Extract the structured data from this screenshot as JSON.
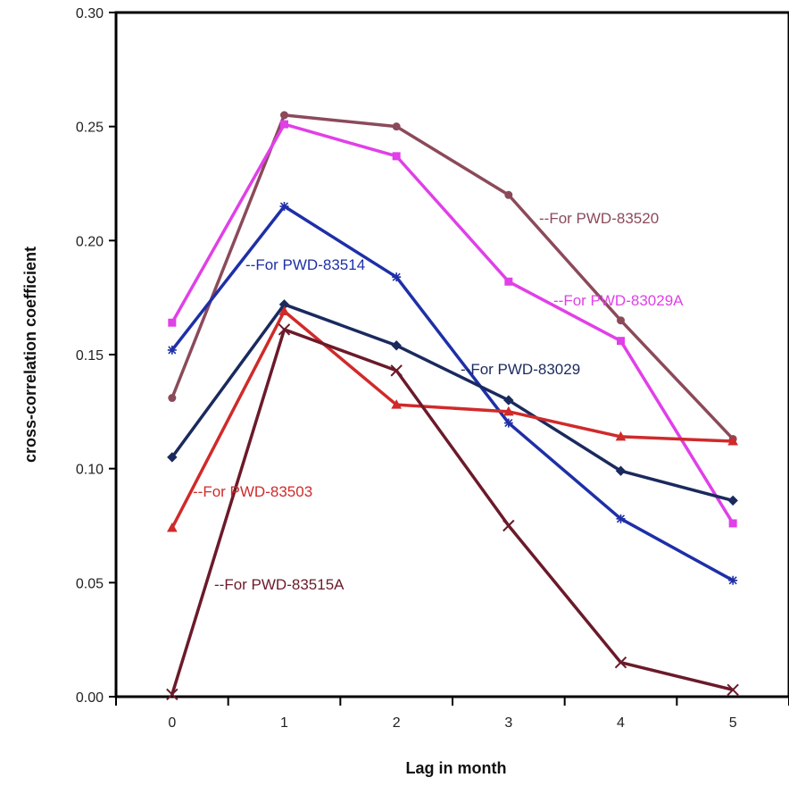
{
  "chart_data": {
    "type": "line",
    "title": "",
    "xlabel": "Lag in month",
    "ylabel": "cross-correlation coefficient",
    "x": [
      0,
      1,
      2,
      3,
      4,
      5
    ],
    "x_tick_labels": [
      "0",
      "1",
      "2",
      "3",
      "4",
      "5"
    ],
    "y_tick_labels": [
      "0.00",
      "0.05",
      "0.10",
      "0.15",
      "0.20",
      "0.25",
      "0.30"
    ],
    "xlim": [
      -0.5,
      5.5
    ],
    "ylim": [
      0,
      0.3
    ],
    "grid": false,
    "legend": "none (inline labels)",
    "series": [
      {
        "name": "PWD-83520",
        "label_prefix": "For",
        "color": "#8B4A5A",
        "marker": "circle",
        "values": [
          0.131,
          0.255,
          0.25,
          0.22,
          0.165,
          0.113
        ]
      },
      {
        "name": "PWD-83029A",
        "label_prefix": "For",
        "color": "#E040E8",
        "marker": "square",
        "values": [
          0.164,
          0.251,
          0.237,
          0.182,
          0.156,
          0.076
        ]
      },
      {
        "name": "PWD-83514",
        "label_prefix": "For",
        "color": "#1E2FA8",
        "marker": "star",
        "values": [
          0.152,
          0.215,
          0.184,
          0.12,
          0.078,
          0.051
        ]
      },
      {
        "name": "PWD-83029",
        "label_prefix": "For",
        "color": "#1A2A5E",
        "marker": "diamond",
        "values": [
          0.105,
          0.172,
          0.154,
          0.13,
          0.099,
          0.086
        ]
      },
      {
        "name": "PWD-83503",
        "label_prefix": "For",
        "color": "#D02A2A",
        "marker": "triangle",
        "values": [
          0.074,
          0.169,
          0.128,
          0.125,
          0.114,
          0.112
        ]
      },
      {
        "name": "PWD-83515A",
        "label_prefix": "For",
        "color": "#6B1A2A",
        "marker": "x",
        "values": [
          0.001,
          0.161,
          0.143,
          0.075,
          0.015,
          0.003
        ]
      }
    ]
  }
}
